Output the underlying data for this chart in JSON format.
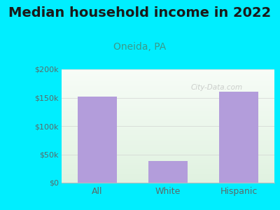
{
  "title": "Median household income in 2022",
  "subtitle": "Oneida, PA",
  "categories": [
    "All",
    "White",
    "Hispanic"
  ],
  "values": [
    152000,
    38000,
    160000
  ],
  "bar_color": "#b39ddb",
  "bg_color": "#00eeff",
  "title_fontsize": 14,
  "subtitle_fontsize": 10,
  "subtitle_color": "#3a9a8a",
  "tick_label_color": "#5a6a6a",
  "ylim": [
    0,
    200000
  ],
  "yticks": [
    0,
    50000,
    100000,
    150000,
    200000
  ],
  "ytick_labels": [
    "$0",
    "$50k",
    "$100k",
    "$150k",
    "$200k"
  ],
  "watermark": "City-Data.com"
}
